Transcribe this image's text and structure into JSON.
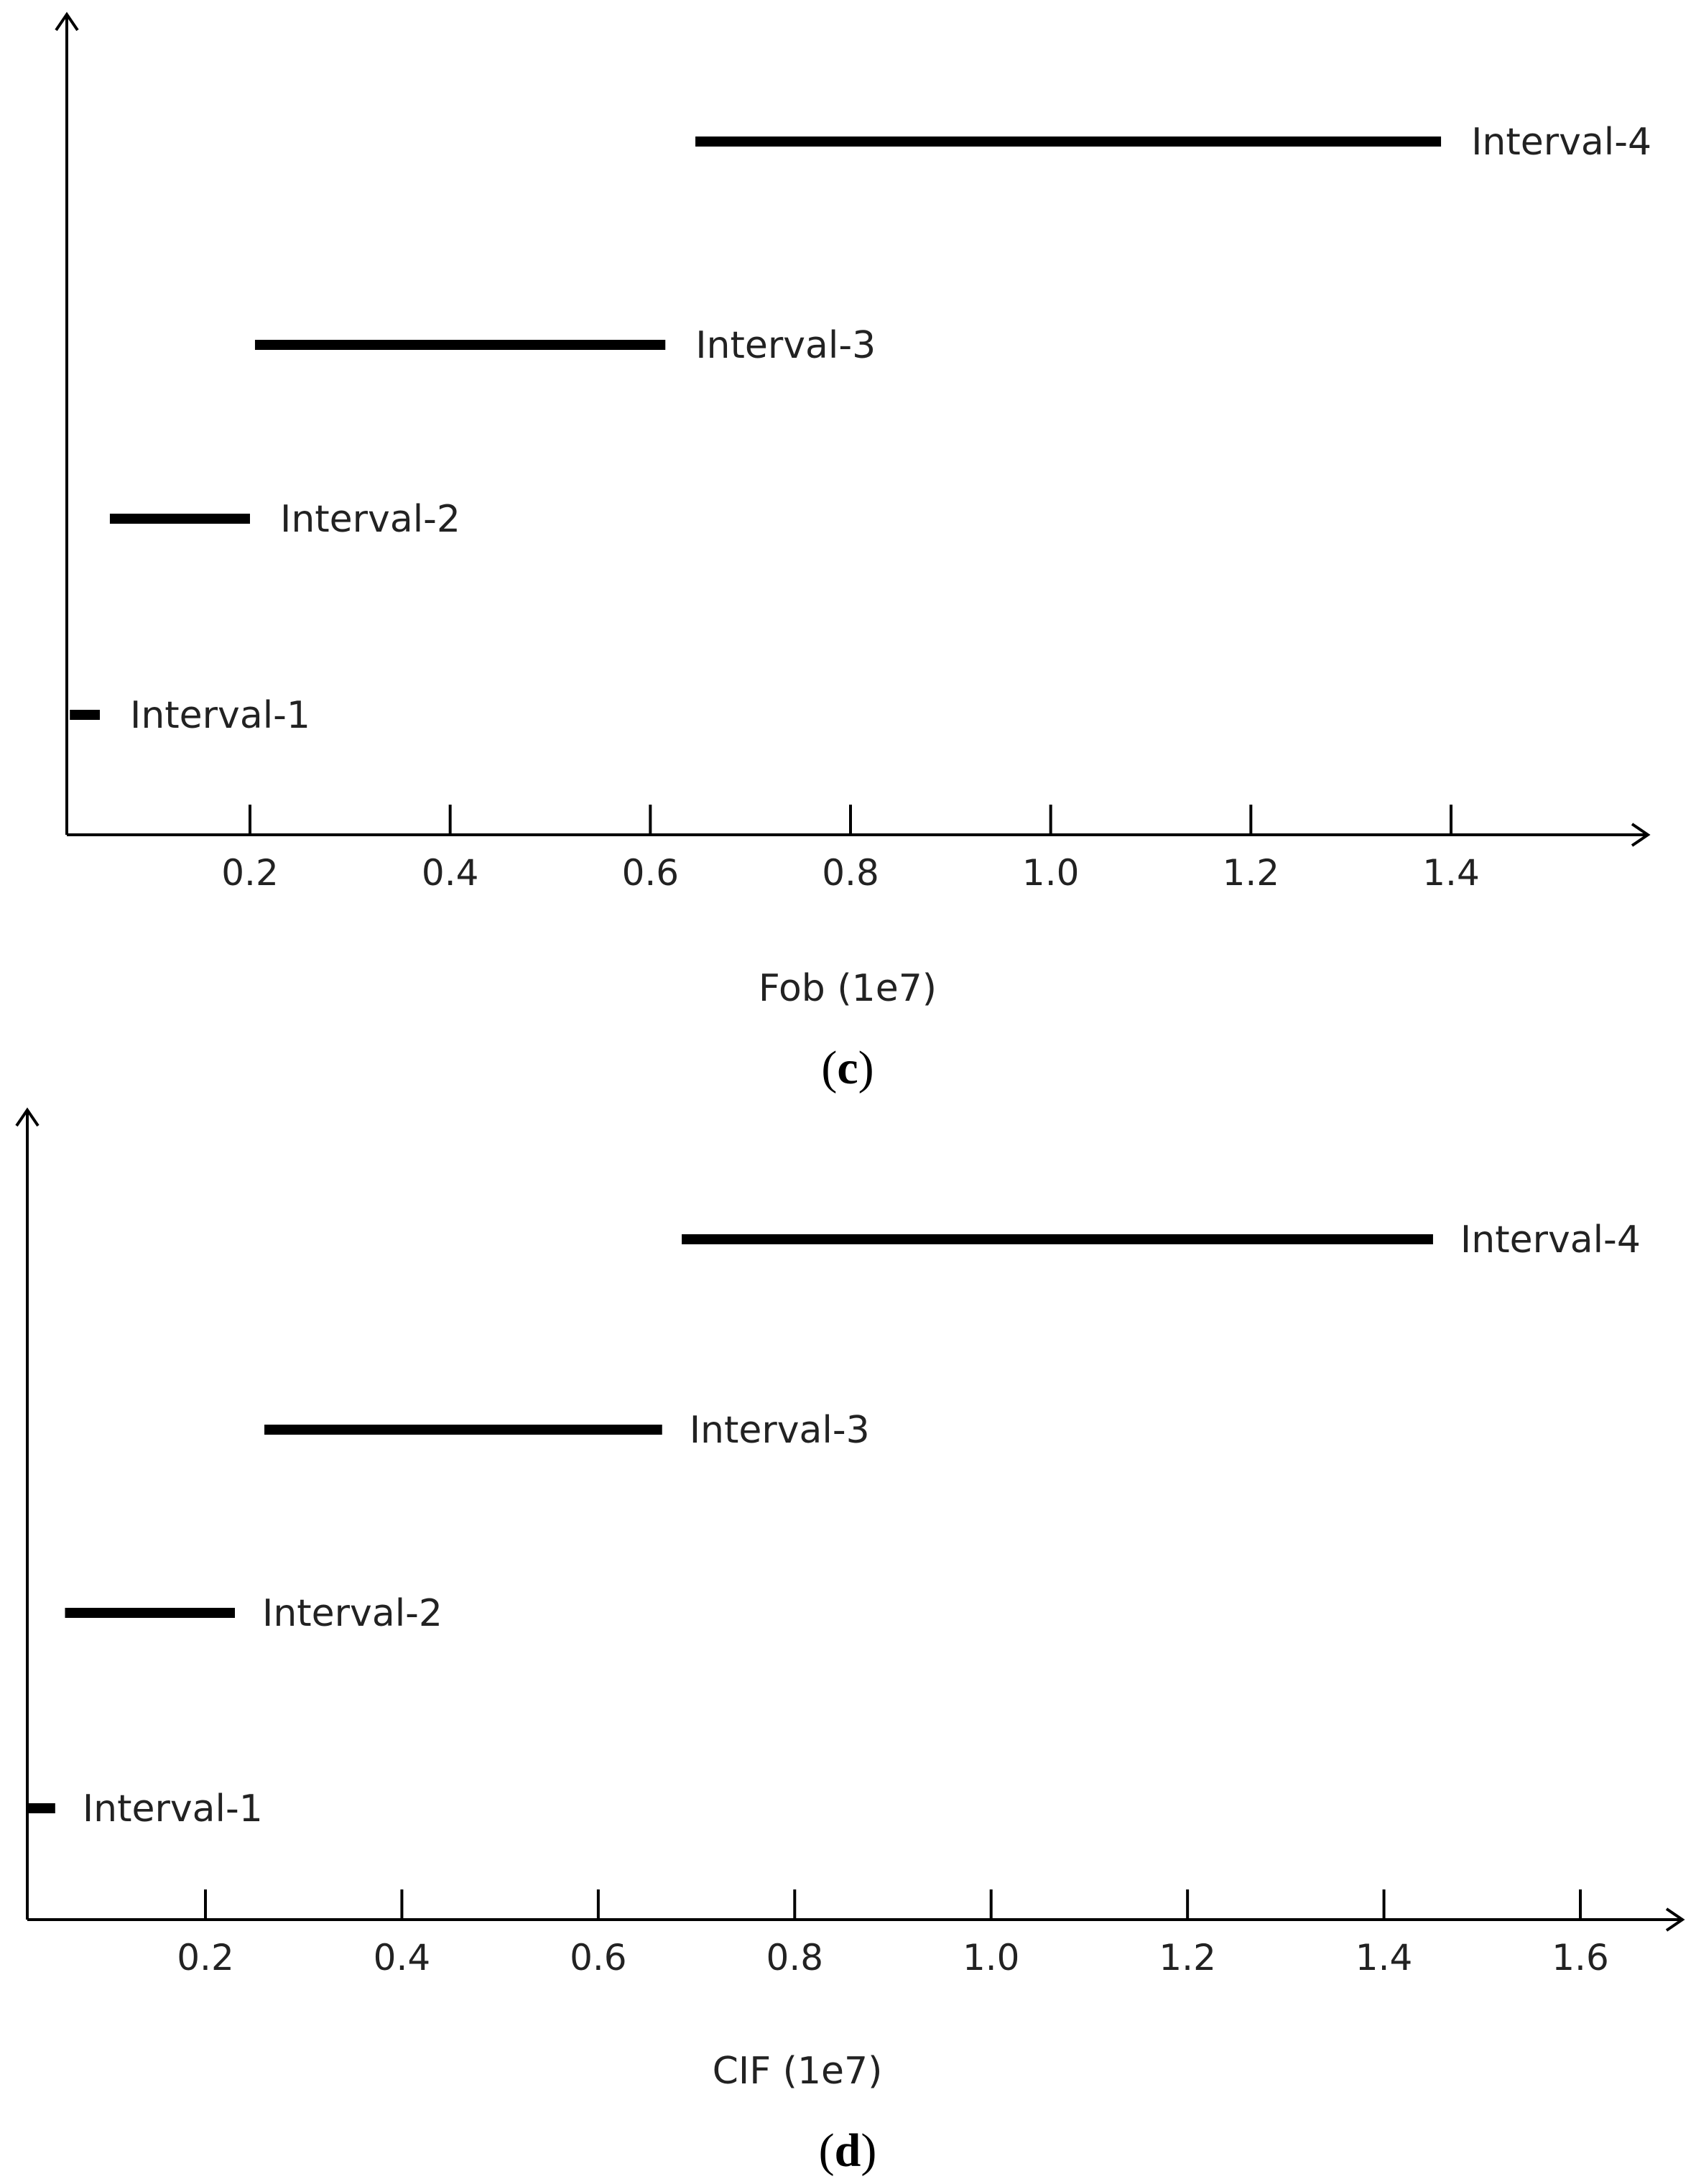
{
  "chart_data": [
    {
      "type": "interval",
      "caption": "c",
      "xlabel": "Fob (1e7)",
      "xlim": [
        0.02,
        1.58
      ],
      "x_ticks": [
        0.2,
        0.4,
        0.6,
        0.8,
        1.0,
        1.2,
        1.4
      ],
      "x_tick_labels": [
        "0.2",
        "0.4",
        "0.6",
        "0.8",
        "1.0",
        "1.2",
        "1.4"
      ],
      "intervals": [
        {
          "label": "Interval-1",
          "start": 0.02,
          "end": 0.05
        },
        {
          "label": "Interval-2",
          "start": 0.06,
          "end": 0.2
        },
        {
          "label": "Interval-3",
          "start": 0.205,
          "end": 0.615
        },
        {
          "label": "Interval-4",
          "start": 0.645,
          "end": 1.39
        }
      ]
    },
    {
      "type": "interval",
      "caption": "d",
      "xlabel": "CIF (1e7)",
      "xlim": [
        0.02,
        1.72
      ],
      "x_ticks": [
        0.2,
        0.4,
        0.6,
        0.8,
        1.0,
        1.2,
        1.4,
        1.6
      ],
      "x_tick_labels": [
        "0.2",
        "0.4",
        "0.6",
        "0.8",
        "1.0",
        "1.2",
        "1.4",
        "1.6"
      ],
      "intervals": [
        {
          "label": "Interval-1",
          "start": 0.02,
          "end": 0.047
        },
        {
          "label": "Interval-2",
          "start": 0.057,
          "end": 0.23
        },
        {
          "label": "Interval-3",
          "start": 0.26,
          "end": 0.665
        },
        {
          "label": "Interval-4",
          "start": 0.685,
          "end": 1.45
        }
      ]
    }
  ]
}
